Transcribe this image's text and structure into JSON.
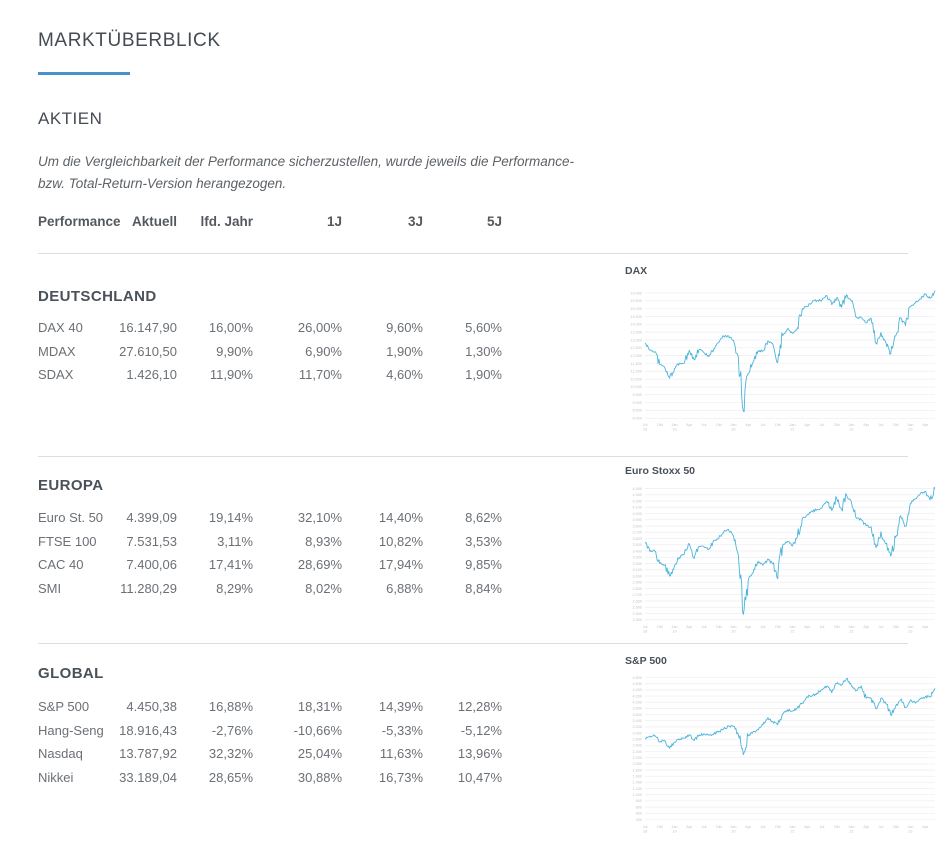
{
  "header": {
    "title": "MARKTÜBERBLICK",
    "accent_color": "#4a8fce",
    "section": "AKTIEN",
    "note_line1": "Um die Vergleichbarkeit der Performance sicherzustellen, wurde jeweils die Performance-",
    "note_line2": "bzw. Total-Return-Version herangezogen."
  },
  "table": {
    "columns": [
      "Performance",
      "Aktuell",
      "lfd. Jahr",
      "1J",
      "3J",
      "5J"
    ],
    "sections": [
      {
        "title": "DEUTSCHLAND",
        "rows": [
          {
            "name": "DAX 40",
            "values": [
              "16.147,90",
              "16,00%",
              "26,00%",
              "9,60%",
              "5,60%"
            ]
          },
          {
            "name": "MDAX",
            "values": [
              "27.610,50",
              "9,90%",
              "6,90%",
              "1,90%",
              "1,30%"
            ]
          },
          {
            "name": "SDAX",
            "values": [
              "1.426,10",
              "11,90%",
              "11,70%",
              "4,60%",
              "1,90%"
            ]
          }
        ]
      },
      {
        "title": "EUROPA",
        "rows": [
          {
            "name": "Euro St. 50",
            "values": [
              "4.399,09",
              "19,14%",
              "32,10%",
              "14,40%",
              "8,62%"
            ]
          },
          {
            "name": "FTSE 100",
            "values": [
              "7.531,53",
              "3,11%",
              "8,93%",
              "10,82%",
              "3,53%"
            ]
          },
          {
            "name": "CAC 40",
            "values": [
              "7.400,06",
              "17,41%",
              "28,69%",
              "17,94%",
              "9,85%"
            ]
          },
          {
            "name": "SMI",
            "values": [
              "11.280,29",
              "8,29%",
              "8,02%",
              "6,88%",
              "8,84%"
            ]
          }
        ]
      },
      {
        "title": "GLOBAL",
        "rows": [
          {
            "name": "S&P 500",
            "values": [
              "4.450,38",
              "16,88%",
              "18,31%",
              "14,39%",
              "12,28%"
            ]
          },
          {
            "name": "Hang-Seng",
            "values": [
              "18.916,43",
              "-2,76%",
              "-10,66%",
              "-5,33%",
              "-5,12%"
            ]
          },
          {
            "name": "Nasdaq",
            "values": [
              "13.787,92",
              "32,32%",
              "25,04%",
              "11,63%",
              "13,96%"
            ]
          },
          {
            "name": "Nikkei",
            "values": [
              "33.189,04",
              "28,65%",
              "30,88%",
              "16,73%",
              "10,47%"
            ]
          }
        ]
      }
    ]
  },
  "chart_style": {
    "line_color": "#4cb4d9",
    "grid_color": "#edeef0",
    "tick_color": "#c0c4c8",
    "grid": true,
    "legend": "none"
  },
  "chart_data": [
    {
      "type": "line",
      "title": "DAX",
      "period": "monthly",
      "start": "Jul 2018",
      "end": "Jun 2023",
      "values": [
        12805,
        12364,
        12247,
        11447,
        11257,
        10559,
        11173,
        11516,
        11526,
        12344,
        11727,
        12399,
        12189,
        11939,
        12428,
        12867,
        13236,
        13249,
        12982,
        11890,
        8450,
        10862,
        11587,
        12311,
        12313,
        12945,
        12761,
        11556,
        13291,
        13719,
        13433,
        13786,
        15008,
        15136,
        15421,
        15531,
        15544,
        15835,
        15261,
        15689,
        15100,
        15885,
        15471,
        14461,
        14415,
        14098,
        14388,
        12784,
        13484,
        12835,
        12114,
        13254,
        14397,
        13924,
        15128,
        15365,
        15629,
        15922,
        15664,
        16148
      ],
      "ylim": [
        7950,
        16450
      ],
      "ytick_max": 16000,
      "ytick_min": 8000,
      "ytick_step": 500,
      "xtick_labels": [
        "Jul 18",
        "Okt",
        "Jan 19",
        "Apr",
        "Jul",
        "Okt",
        "Jan 20",
        "Apr",
        "Jul",
        "Okt",
        "Jan 21",
        "Apr",
        "Jul",
        "Okt",
        "Jan 22",
        "Apr",
        "Jul",
        "Okt",
        "Jan 23",
        "Apr"
      ],
      "xtick_month_step": 3
    },
    {
      "type": "line",
      "title": "Euro Stoxx 50",
      "period": "monthly",
      "start": "Jul 2018",
      "end": "Jun 2023",
      "values": [
        3525,
        3393,
        3399,
        3198,
        3173,
        3001,
        3159,
        3298,
        3352,
        3515,
        3280,
        3474,
        3467,
        3427,
        3569,
        3604,
        3704,
        3745,
        3641,
        3329,
        2385,
        2928,
        3050,
        3234,
        3174,
        3273,
        3194,
        2958,
        3493,
        3553,
        3481,
        3636,
        3919,
        3974,
        4039,
        4064,
        4089,
        4196,
        4048,
        4251,
        4063,
        4298,
        4175,
        3924,
        3903,
        3803,
        3789,
        3455,
        3708,
        3517,
        3318,
        3618,
        3965,
        3794,
        4163,
        4238,
        4315,
        4359,
        4218,
        4399
      ],
      "ylim": [
        2280,
        4440
      ],
      "ytick_max": 4400,
      "ytick_min": 2300,
      "ytick_step": 100,
      "xtick_labels": [
        "Jul 18",
        "Okt",
        "Jan 19",
        "Apr",
        "Jul",
        "Okt",
        "Jan 20",
        "Apr",
        "Jul",
        "Okt",
        "Jan 21",
        "Apr",
        "Jul",
        "Okt",
        "Jan 22",
        "Apr",
        "Jul",
        "Okt",
        "Jan 23",
        "Apr"
      ],
      "xtick_month_step": 3
    },
    {
      "type": "line",
      "title": "S&P 500",
      "period": "monthly",
      "start": "Jul 2018",
      "end": "Jun 2023",
      "values": [
        2816,
        2902,
        2914,
        2712,
        2760,
        2507,
        2704,
        2784,
        2834,
        2946,
        2752,
        2942,
        2980,
        2926,
        2977,
        3038,
        3141,
        3231,
        3226,
        2954,
        2305,
        2912,
        3044,
        3100,
        3271,
        3500,
        3363,
        3270,
        3622,
        3756,
        3714,
        3811,
        3973,
        4181,
        4204,
        4298,
        4395,
        4523,
        4308,
        4605,
        4567,
        4766,
        4516,
        4374,
        4530,
        4132,
        4132,
        3785,
        4130,
        3955,
        3586,
        3872,
        4080,
        3840,
        4077,
        3970,
        4109,
        4169,
        4180,
        4450
      ],
      "ylim": [
        150,
        4850
      ],
      "ytick_max": 4800,
      "ytick_min": 200,
      "ytick_step": 200,
      "xtick_labels": [
        "Jul 18",
        "Okt",
        "Jan 19",
        "Apr",
        "Jul",
        "Okt",
        "Jan 20",
        "Apr",
        "Jul",
        "Okt",
        "Jan 21",
        "Apr",
        "Jul",
        "Okt",
        "Jan 22",
        "Apr",
        "Jul",
        "Okt",
        "Jan 23",
        "Apr"
      ],
      "xtick_month_step": 3
    }
  ]
}
